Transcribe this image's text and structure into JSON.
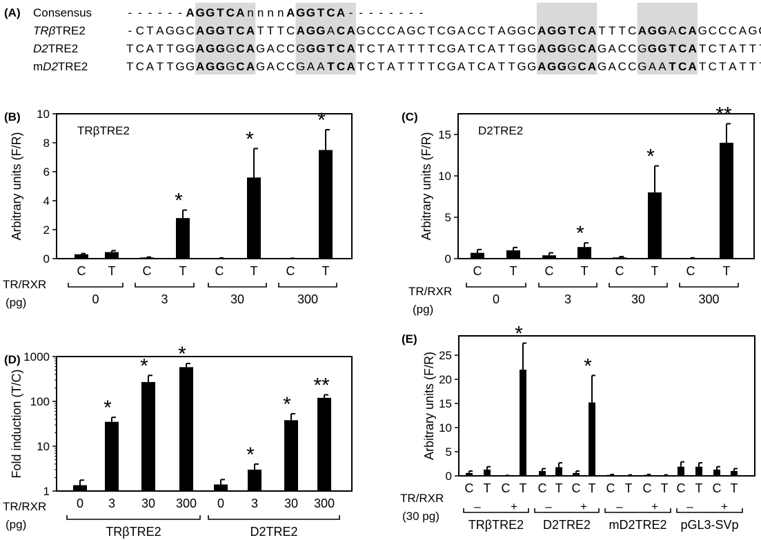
{
  "panel_a": {
    "label": "(A)",
    "rows": [
      {
        "name": "Consensus",
        "italic_prefix": "",
        "name_rest": "Consensus",
        "seq": "------AGGTCAnnnnAGGTCA--------",
        "bold": [
          [
            6,
            12
          ],
          [
            16,
            22
          ]
        ]
      },
      {
        "name": "TRβTRE2",
        "italic_prefix": "TRβ",
        "name_rest": "TRE2",
        "seq": "-CTAGGCAGGTCATTTCAGGACAGCCCAGCTCGACCTAGGCAGGTCATTTCAGGACAGCCCAGC",
        "bold": [
          [
            7,
            13
          ],
          [
            17,
            20
          ],
          [
            21,
            23
          ],
          [
            41,
            47
          ],
          [
            51,
            54
          ],
          [
            55,
            57
          ]
        ]
      },
      {
        "name": "D2TRE2",
        "italic_prefix": "D2",
        "name_rest": "TRE2",
        "seq": "TCATTGGAGGGCAGACCGGGTCATCTATTTTCGATCATTGGAGGGCAGACCGGGTCATCTATTT",
        "bold": [
          [
            7,
            10
          ],
          [
            11,
            13
          ],
          [
            18,
            23
          ],
          [
            41,
            44
          ],
          [
            45,
            47
          ],
          [
            52,
            57
          ]
        ]
      },
      {
        "name": "mD2TRE2",
        "italic_prefix": "D2",
        "name_rest": "TRE2",
        "name_lead": "m",
        "seq": "TCATTGGAGGGCAGACCGAATCATCTATTTTCGATCATTGGAGGGCAGACCGAATCATCTATTT",
        "bold": [
          [
            7,
            10
          ],
          [
            11,
            13
          ],
          [
            20,
            23
          ],
          [
            41,
            44
          ],
          [
            45,
            47
          ],
          [
            54,
            57
          ]
        ]
      }
    ],
    "shade_color": "#d9d9d9",
    "shaded_columns": [
      [
        7,
        13
      ],
      [
        17,
        23
      ],
      [
        41,
        47
      ],
      [
        51,
        57
      ]
    ]
  },
  "chart_data": [
    {
      "panel": "(B)",
      "type": "bar",
      "title": "TRβTRE2",
      "ylabel": "Arbitrary units (F/R)",
      "ylim": [
        0,
        10
      ],
      "yticks": [
        "0",
        "2",
        "4",
        "6",
        "8",
        "10"
      ],
      "categories": [
        "C",
        "T",
        "C",
        "T",
        "C",
        "T",
        "C",
        "T"
      ],
      "values": [
        0.3,
        0.45,
        0.08,
        2.8,
        0.03,
        5.6,
        0.02,
        7.5
      ],
      "errors": [
        0.05,
        0.1,
        0.03,
        0.55,
        0.02,
        2.0,
        0.01,
        1.4
      ],
      "sig": [
        "",
        "",
        "",
        "*",
        "",
        "*",
        "",
        "*"
      ],
      "group_label": "TR/RXR",
      "group_unit": "(pg)",
      "groups": [
        "0",
        "3",
        "30",
        "300"
      ]
    },
    {
      "panel": "(C)",
      "type": "bar",
      "title": "D2TRE2",
      "ylabel": "Arbitrary units (F/R)",
      "ylim": [
        0,
        17.5
      ],
      "yticks": [
        "0",
        "5",
        "10",
        "15"
      ],
      "categories": [
        "C",
        "T",
        "C",
        "T",
        "C",
        "T",
        "C",
        "T"
      ],
      "values": [
        0.7,
        1.0,
        0.4,
        1.4,
        0.15,
        8.0,
        0.05,
        14.0
      ],
      "errors": [
        0.4,
        0.35,
        0.3,
        0.5,
        0.1,
        3.2,
        0.05,
        2.3
      ],
      "sig": [
        "",
        "",
        "",
        "*",
        "",
        "*",
        "",
        "**"
      ],
      "group_label": "TR/RXR",
      "group_unit": "(pg)",
      "groups": [
        "0",
        "3",
        "30",
        "300"
      ]
    },
    {
      "panel": "(D)",
      "type": "bar",
      "scale": "log",
      "ylabel": "Fold induction (T/C)",
      "ylim": [
        1,
        1000
      ],
      "yticks": [
        "1",
        "10",
        "100",
        "1000"
      ],
      "categories": [
        "0",
        "3",
        "30",
        "300",
        "0",
        "3",
        "30",
        "300"
      ],
      "values": [
        1.35,
        35,
        270,
        580,
        1.4,
        3.0,
        38,
        120
      ],
      "errors_upper": [
        1.75,
        44,
        380,
        700,
        1.8,
        4.0,
        53,
        140
      ],
      "sig": [
        "",
        "*",
        "*",
        "*",
        "",
        "*",
        "*",
        "**"
      ],
      "group_label": "TR/RXR",
      "group_unit": "(pg)",
      "groups": [
        "TRβTRE2",
        "D2TRE2"
      ]
    },
    {
      "panel": "(E)",
      "type": "bar",
      "ylabel": "Arbitrary units (F/R)",
      "ylim": [
        0,
        29
      ],
      "yticks": [
        "0",
        "5",
        "10",
        "15",
        "20",
        "25"
      ],
      "categories": [
        "C",
        "T",
        "C",
        "T",
        "C",
        "T",
        "C",
        "T",
        "C",
        "T",
        "C",
        "T",
        "C",
        "T",
        "C",
        "T"
      ],
      "values": [
        0.6,
        1.3,
        0.05,
        22.0,
        1.0,
        1.8,
        0.6,
        15.2,
        0.2,
        0.1,
        0.2,
        0.1,
        1.9,
        1.9,
        1.3,
        1.0
      ],
      "errors": [
        0.4,
        0.6,
        0.05,
        5.5,
        0.5,
        0.9,
        0.4,
        5.6,
        0.1,
        0.1,
        0.1,
        0.1,
        1.0,
        0.8,
        0.6,
        0.5
      ],
      "sig": [
        "",
        "",
        "",
        "*",
        "",
        "",
        "",
        "*",
        "",
        "",
        "",
        "",
        "",
        "",
        "",
        ""
      ],
      "group_label": "TR/RXR",
      "group_unit": "(30 pg)",
      "treatments": [
        "–",
        "+",
        "–",
        "+",
        "–",
        "+",
        "–",
        "+"
      ],
      "groups": [
        "TRβTRE2",
        "D2TRE2",
        "mD2TRE2",
        "pGL3-SVp"
      ]
    }
  ]
}
